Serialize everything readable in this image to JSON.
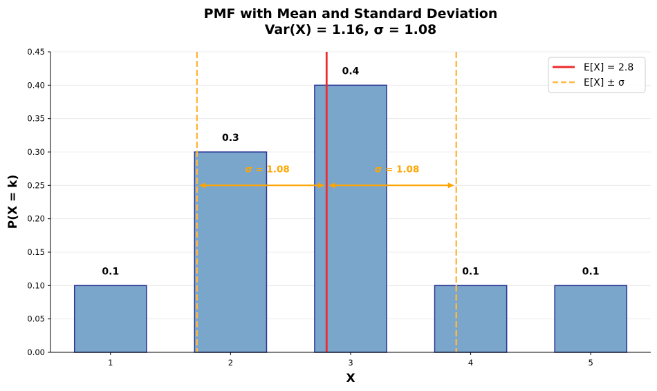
{
  "chart_data": {
    "type": "bar",
    "title": "PMF with Mean and Standard Deviation",
    "subtitle": "Var(X) = 1.16, σ = 1.08",
    "xlabel": "X",
    "ylabel": "P(X = k)",
    "categories": [
      "1",
      "2",
      "3",
      "4",
      "5"
    ],
    "x": [
      1,
      2,
      3,
      4,
      5
    ],
    "values": [
      0.1,
      0.3,
      0.4,
      0.1,
      0.1
    ],
    "data_labels": [
      "0.1",
      "0.3",
      "0.4",
      "0.1",
      "0.1"
    ],
    "xlim": [
      0.5,
      5.5
    ],
    "ylim": [
      0,
      0.45
    ],
    "yticks": [
      0.0,
      0.05,
      0.1,
      0.15,
      0.2,
      0.25,
      0.3,
      0.35,
      0.4,
      0.45
    ],
    "ytick_labels": [
      "0.00",
      "0.05",
      "0.10",
      "0.15",
      "0.20",
      "0.25",
      "0.30",
      "0.35",
      "0.40",
      "0.45"
    ],
    "grid": "y",
    "mean": 2.8,
    "sigma": 1.08,
    "mean_minus_sigma": 1.72,
    "mean_plus_sigma": 3.88,
    "arrow_y": 0.25,
    "annotations": [
      "σ = 1.08",
      "σ = 1.08"
    ],
    "legend": {
      "position": "top-right",
      "entries": [
        {
          "label": "E[X] = 2.8",
          "style": "solid",
          "color": "#ee2b2b"
        },
        {
          "label": "E[X] ± σ",
          "style": "dashed",
          "color": "#ffb840"
        }
      ]
    },
    "colors": {
      "bar_fill": "#7ba6cc",
      "bar_edge": "#283593",
      "mean_line": "#ee2b2b",
      "sigma_line": "#ffb840",
      "annotation": "#ffa500",
      "grid": "#e6e6e6"
    }
  }
}
